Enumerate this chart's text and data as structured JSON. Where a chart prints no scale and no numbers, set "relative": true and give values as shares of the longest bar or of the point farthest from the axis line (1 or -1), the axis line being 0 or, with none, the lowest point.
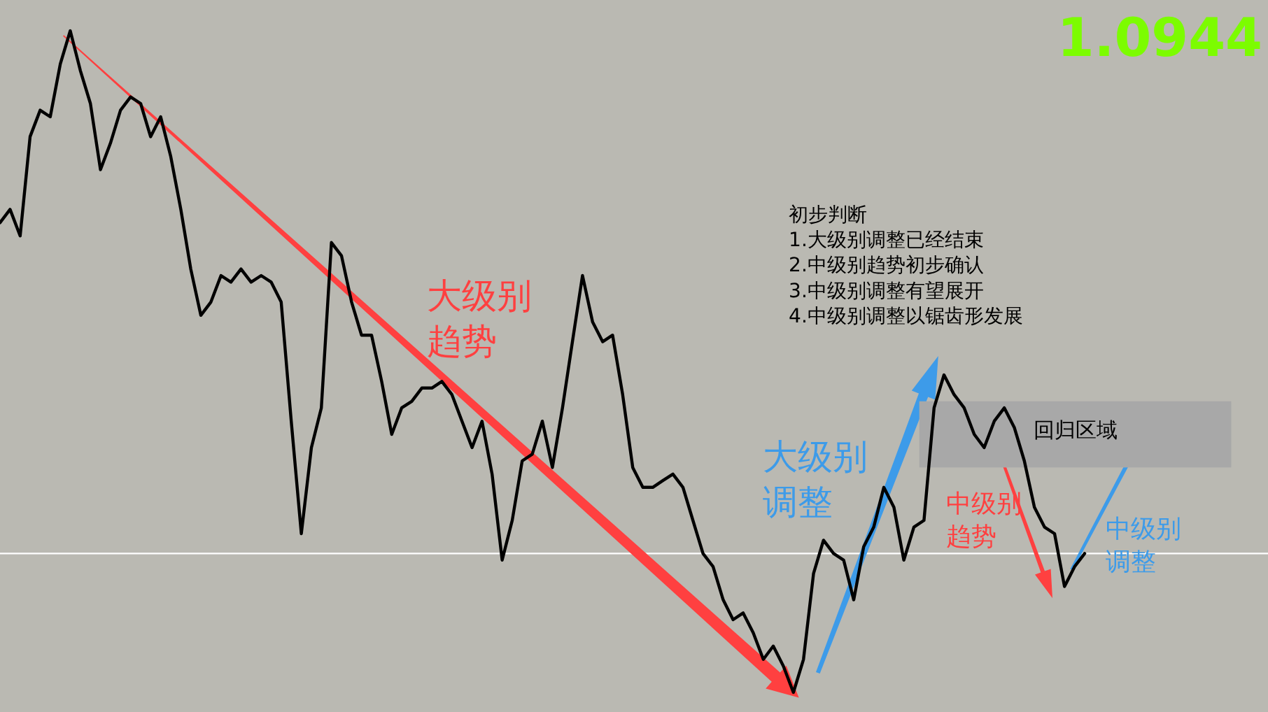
{
  "chart_data": {
    "type": "line",
    "relative": true,
    "tick_labels": false,
    "categories": [
      null,
      null,
      null,
      null,
      null,
      null,
      null,
      null,
      null,
      null,
      null,
      null,
      null,
      null,
      null,
      null,
      null,
      null,
      null,
      null,
      null,
      null,
      null,
      null,
      null,
      null,
      null,
      null,
      null,
      null,
      null,
      null,
      null,
      null,
      null,
      null,
      null,
      null,
      null,
      null,
      null,
      null,
      null,
      null,
      null,
      null,
      null,
      null,
      null,
      null,
      null,
      null,
      null,
      null,
      null,
      null,
      null,
      null,
      null,
      null,
      null,
      null,
      null,
      null,
      null,
      null,
      null,
      null,
      null,
      null,
      null,
      null,
      null,
      null,
      null,
      null,
      null,
      null,
      null,
      null,
      null,
      null,
      null,
      null,
      null,
      null,
      null,
      null,
      null,
      null,
      null,
      null,
      null,
      null,
      null,
      null,
      null,
      null,
      null,
      null,
      null,
      null,
      null,
      null,
      null,
      null,
      null,
      null,
      null
    ],
    "series": [
      {
        "color": "#000000",
        "values": [
          0.71,
          0.73,
          0.69,
          0.84,
          0.88,
          0.87,
          0.95,
          1,
          0.94,
          0.89,
          0.79,
          0.83,
          0.88,
          0.9,
          0.89,
          0.84,
          0.87,
          0.81,
          0.73,
          0.64,
          0.57,
          0.59,
          0.63,
          0.62,
          0.64,
          0.62,
          0.63,
          0.62,
          0.59,
          0.41,
          0.24,
          0.37,
          0.43,
          0.68,
          0.66,
          0.59,
          0.54,
          0.54,
          0.47,
          0.39,
          0.43,
          0.44,
          0.46,
          0.46,
          0.47,
          0.45,
          0.41,
          0.37,
          0.41,
          0.33,
          0.2,
          0.26,
          0.35,
          0.36,
          0.41,
          0.34,
          0.43,
          0.53,
          0.63,
          0.56,
          0.53,
          0.54,
          0.45,
          0.34,
          0.31,
          0.31,
          0.32,
          0.33,
          0.31,
          0.26,
          0.21,
          0.19,
          0.14,
          0.11,
          0.12,
          0.09,
          0.05,
          0.07,
          0.04,
          0,
          0.05,
          0.18,
          0.23,
          0.21,
          0.2,
          0.14,
          0.22,
          0.25,
          0.31,
          0.28,
          0.2,
          0.25,
          0.26,
          0.43,
          0.48,
          0.45,
          0.43,
          0.39,
          0.37,
          0.41,
          0.43,
          0.4,
          0.35,
          0.28,
          0.25,
          0.24,
          0.16,
          0.19,
          0.21
        ]
      }
    ],
    "ref_lines": [
      {
        "axis": "y",
        "value": 0.21,
        "color": "#ffffff"
      }
    ],
    "bands": [
      {
        "axis": "y",
        "from": 0.34,
        "to": 0.44,
        "label": "回归区域",
        "color": "#a8a8a8"
      }
    ],
    "annotations": [
      "1.0944",
      "初步判断\n1.大级别调整已经结束\n2.中级别趋势初步确认\n3.中级别调整有望展开\n4.中级别调整以锯齿形发展",
      "大级别趋势",
      "大级别调整",
      "中级别趋势",
      "中级别调整"
    ]
  }
}
